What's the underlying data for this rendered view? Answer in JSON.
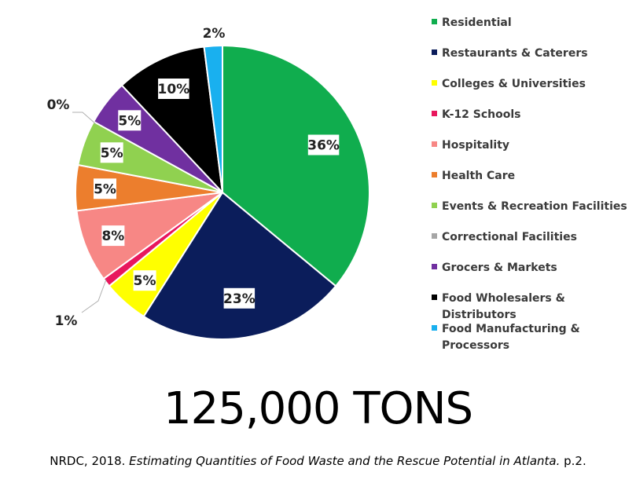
{
  "chart_data": {
    "type": "pie",
    "slices": [
      {
        "label": "Residential",
        "value": 36,
        "display": "36%",
        "color": "#10ad4e"
      },
      {
        "label": "Restaurants & Caterers",
        "value": 23,
        "display": "23%",
        "color": "#0b1d5b"
      },
      {
        "label": "Colleges & Universities",
        "value": 5,
        "display": "5%",
        "color": "#ffff00"
      },
      {
        "label": "K-12 Schools",
        "value": 1,
        "display": "1%",
        "color": "#e8175d"
      },
      {
        "label": "Hospitality",
        "value": 8,
        "display": "8%",
        "color": "#f78785"
      },
      {
        "label": "Health Care",
        "value": 5,
        "display": "5%",
        "color": "#ec7e2d"
      },
      {
        "label": "Events & Recreation Facilities",
        "value": 5,
        "display": "5%",
        "color": "#90d150"
      },
      {
        "label": "Correctional Facilities",
        "value": 0,
        "display": "0%",
        "color": "#a6a6a6"
      },
      {
        "label": "Grocers & Markets",
        "value": 5,
        "display": "5%",
        "color": "#7030a0"
      },
      {
        "label": "Food Wholesalers & Distributors",
        "value": 10,
        "display": "10%",
        "color": "#000000"
      },
      {
        "label": "Food Manufacturing & Processors",
        "value": 2,
        "display": "2%",
        "color": "#19b0ef"
      }
    ],
    "legend_position": "right"
  },
  "total_label": "125,000 TONS",
  "citation": {
    "prefix": "NRDC, 2018. ",
    "title": "Estimating Quantities of Food Waste and the Rescue Potential in Atlanta.",
    "suffix": " p.2."
  }
}
